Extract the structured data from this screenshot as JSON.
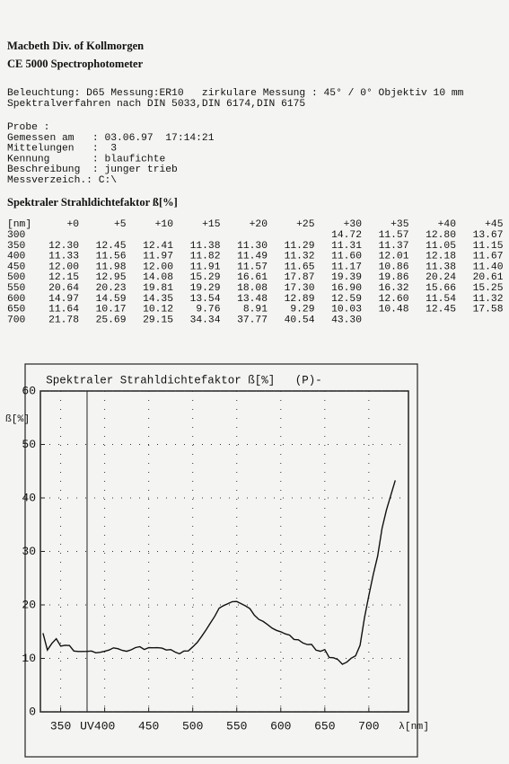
{
  "header": {
    "company": "Macbeth  Div. of Kollmorgen",
    "model": "CE 5000    Spectrophotometer"
  },
  "settings": [
    "Beleuchtung: D65 Messung:ER10   zirkulare Messung : 45° / 0° Objektiv 10 mm",
    "Spektralverfahren nach DIN 5033,DIN 6174,DIN 6175"
  ],
  "probe": [
    "Probe :",
    "Gemessen am   : 03.06.97  17:14:21",
    "Mittelungen   :  3",
    "Kennung       : blaufichte",
    "Beschreibung  : junger trieb",
    "Messverzeich.: C:\\"
  ],
  "table": {
    "title": "Spektraler Strahldichtefaktor ß[%]",
    "header": [
      "[nm]",
      "+0",
      "+5",
      "+10",
      "+15",
      "+20",
      "+25",
      "+30",
      "+35",
      "+40",
      "+45"
    ],
    "rows": [
      [
        "300",
        null,
        null,
        null,
        null,
        null,
        null,
        "14.72",
        "11.57",
        "12.80",
        "13.67"
      ],
      [
        "350",
        "12.30",
        "12.45",
        "12.41",
        "11.38",
        "11.30",
        "11.29",
        "11.31",
        "11.37",
        "11.05",
        "11.15"
      ],
      [
        "400",
        "11.33",
        "11.56",
        "11.97",
        "11.82",
        "11.49",
        "11.32",
        "11.60",
        "12.01",
        "12.18",
        "11.67"
      ],
      [
        "450",
        "12.00",
        "11.98",
        "12.00",
        "11.91",
        "11.57",
        "11.65",
        "11.17",
        "10.86",
        "11.38",
        "11.40"
      ],
      [
        "500",
        "12.15",
        "12.95",
        "14.08",
        "15.29",
        "16.61",
        "17.87",
        "19.39",
        "19.86",
        "20.24",
        "20.61"
      ],
      [
        "550",
        "20.64",
        "20.23",
        "19.81",
        "19.29",
        "18.08",
        "17.30",
        "16.90",
        "16.32",
        "15.66",
        "15.25"
      ],
      [
        "600",
        "14.97",
        "14.59",
        "14.35",
        "13.54",
        "13.48",
        "12.89",
        "12.59",
        "12.60",
        "11.54",
        "11.32"
      ],
      [
        "650",
        "11.64",
        "10.17",
        "10.12",
        "9.76",
        "8.91",
        "9.29",
        "10.03",
        "10.48",
        "12.45",
        "17.58"
      ],
      [
        "700",
        "21.78",
        "25.69",
        "29.15",
        "34.34",
        "37.77",
        "40.54",
        "43.30",
        null,
        null,
        null
      ]
    ]
  },
  "chart_data": {
    "type": "line",
    "title": "Spektraler Strahldichtefaktor ß[%]   (P)-",
    "y_label": "ß[%]",
    "x_label": "λ[nm]",
    "x": [
      330,
      335,
      340,
      345,
      350,
      355,
      360,
      365,
      370,
      375,
      380,
      385,
      390,
      395,
      400,
      405,
      410,
      415,
      420,
      425,
      430,
      435,
      440,
      445,
      450,
      455,
      460,
      465,
      470,
      475,
      480,
      485,
      490,
      495,
      500,
      505,
      510,
      515,
      520,
      525,
      530,
      535,
      540,
      545,
      550,
      555,
      560,
      565,
      570,
      575,
      580,
      585,
      590,
      595,
      600,
      605,
      610,
      615,
      620,
      625,
      630,
      635,
      640,
      645,
      650,
      655,
      660,
      665,
      670,
      675,
      680,
      685,
      690,
      695,
      700,
      705,
      710,
      715,
      720,
      725,
      730
    ],
    "series": [
      {
        "color": "#111111",
        "values": [
          14.72,
          11.57,
          12.8,
          13.67,
          12.3,
          12.45,
          12.41,
          11.38,
          11.3,
          11.29,
          11.31,
          11.37,
          11.05,
          11.15,
          11.33,
          11.56,
          11.97,
          11.82,
          11.49,
          11.32,
          11.6,
          12.01,
          12.18,
          11.67,
          12.0,
          11.98,
          12.0,
          11.91,
          11.57,
          11.65,
          11.17,
          10.86,
          11.38,
          11.4,
          12.15,
          12.95,
          14.08,
          15.29,
          16.61,
          17.87,
          19.39,
          19.86,
          20.24,
          20.61,
          20.64,
          20.23,
          19.81,
          19.29,
          18.08,
          17.3,
          16.9,
          16.32,
          15.66,
          15.25,
          14.97,
          14.59,
          14.35,
          13.54,
          13.48,
          12.89,
          12.59,
          12.6,
          11.54,
          11.32,
          11.64,
          10.17,
          10.12,
          9.76,
          8.91,
          9.29,
          10.03,
          10.48,
          12.45,
          17.58,
          21.78,
          25.69,
          29.15,
          34.34,
          37.77,
          40.54,
          43.3
        ]
      }
    ],
    "xlim": [
      327,
      745
    ],
    "ylim": [
      0,
      60
    ],
    "xticks": [
      350,
      {
        "value": 380,
        "label": "UV"
      },
      400,
      450,
      500,
      550,
      600,
      650,
      700
    ],
    "yticks": [
      0,
      10,
      20,
      30,
      40,
      50,
      60
    ],
    "grid": true
  }
}
